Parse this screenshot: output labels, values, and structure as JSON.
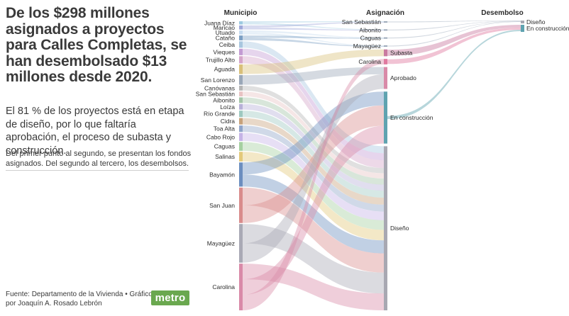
{
  "headline": "De los $298 millones asignados a proyectos para Calles Completas, se han desembolsado $13 millones desde 2020.",
  "subhead": "El 81 % de los proyectos está en etapa de diseño, por lo que faltaría aprobación, el proceso de subasta y construcción.",
  "note": "Del primer punto al segundo, se presentan los fondos asignados. Del segundo al tercero, los desembolsos.",
  "source": "Fuente: Departamento de la Vivienda • Gráfico por Joaquín A. Rosado Lebrón",
  "logo": "metro",
  "chart_data": {
    "type": "sankey",
    "unit": "millones de dólares (estimado)",
    "column_titles": [
      "Municipio",
      "Asignación",
      "Desembolso"
    ],
    "municipios": [
      {
        "name": "Juana Díaz",
        "value": 2
      },
      {
        "name": "Maricao",
        "value": 2.5
      },
      {
        "name": "Utuado",
        "value": 2.5
      },
      {
        "name": "Cataño",
        "value": 3
      },
      {
        "name": "Ceiba",
        "value": 4
      },
      {
        "name": "Vieques",
        "value": 4
      },
      {
        "name": "Trujillo Alto",
        "value": 4.5
      },
      {
        "name": "Aguada",
        "value": 6
      },
      {
        "name": "San Lorenzo",
        "value": 6
      },
      {
        "name": "Canóvanas",
        "value": 3
      },
      {
        "name": "San Sebastián",
        "value": 3
      },
      {
        "name": "Aibonito",
        "value": 3.5
      },
      {
        "name": "Loíza",
        "value": 3.5
      },
      {
        "name": "Río Grande",
        "value": 4
      },
      {
        "name": "Cidra",
        "value": 4
      },
      {
        "name": "Toa Alta",
        "value": 4
      },
      {
        "name": "Cabo Rojo",
        "value": 5
      },
      {
        "name": "Caguas",
        "value": 5.5
      },
      {
        "name": "Salinas",
        "value": 6
      },
      {
        "name": "Bayamón",
        "value": 15
      },
      {
        "name": "San Juan",
        "value": 22
      },
      {
        "name": "Mayagüez",
        "value": 24
      },
      {
        "name": "Carolina",
        "value": 29
      }
    ],
    "asignacion": [
      {
        "name": "San Sebastián",
        "value": 1
      },
      {
        "name": "Aibonito",
        "value": 1
      },
      {
        "name": "Caguas",
        "value": 1
      },
      {
        "name": "Mayagüez",
        "value": 1
      },
      {
        "name": "Subasta",
        "value": 5
      },
      {
        "name": "Carolina",
        "value": 4
      },
      {
        "name": "Aprobado",
        "value": 16
      },
      {
        "name": "En construcción",
        "value": 38
      },
      {
        "name": "Diseño",
        "value": 120
      }
    ],
    "desembolso": [
      {
        "name": "Diseño",
        "value": 3
      },
      {
        "name": "En construcción",
        "value": 9
      }
    ],
    "links_to_desembolso": [
      {
        "from": "San Sebastián",
        "to": "Diseño",
        "value": 0.5
      },
      {
        "from": "Aibonito",
        "to": "Diseño",
        "value": 0.5
      },
      {
        "from": "Caguas",
        "to": "Diseño",
        "value": 0.5
      },
      {
        "from": "Mayagüez",
        "to": "Diseño",
        "value": 0.5
      },
      {
        "from": "Subasta",
        "to": "En construcción",
        "value": 4
      },
      {
        "from": "Carolina",
        "to": "En construcción",
        "value": 3
      },
      {
        "from": "En construcción",
        "to": "En construcción",
        "value": 2
      }
    ],
    "colors": {
      "palette": [
        "#9ecae1",
        "#9fa8da",
        "#c6dbef",
        "#7b9fc4",
        "#a8c6df",
        "#c39bd3",
        "#d4a5c9",
        "#d9c07a",
        "#9aa7b8",
        "#b5b5b5",
        "#e8c3c3",
        "#a3c4a8",
        "#b7b0d8",
        "#9ec9c0",
        "#c7a27c",
        "#8fa4c9",
        "#c5b3e6",
        "#a5d0a0",
        "#e3c97a",
        "#6c8ebf",
        "#d98c8c",
        "#a9a9b5",
        "#d98aa8"
      ],
      "Subasta": "#c97aa0",
      "Carolina": "#e07aa0",
      "Aprobado": "#d98aa8",
      "En construcción": "#5fa3b0",
      "Diseño": "#a8a8b2",
      "small": "#9aa7b8"
    }
  }
}
